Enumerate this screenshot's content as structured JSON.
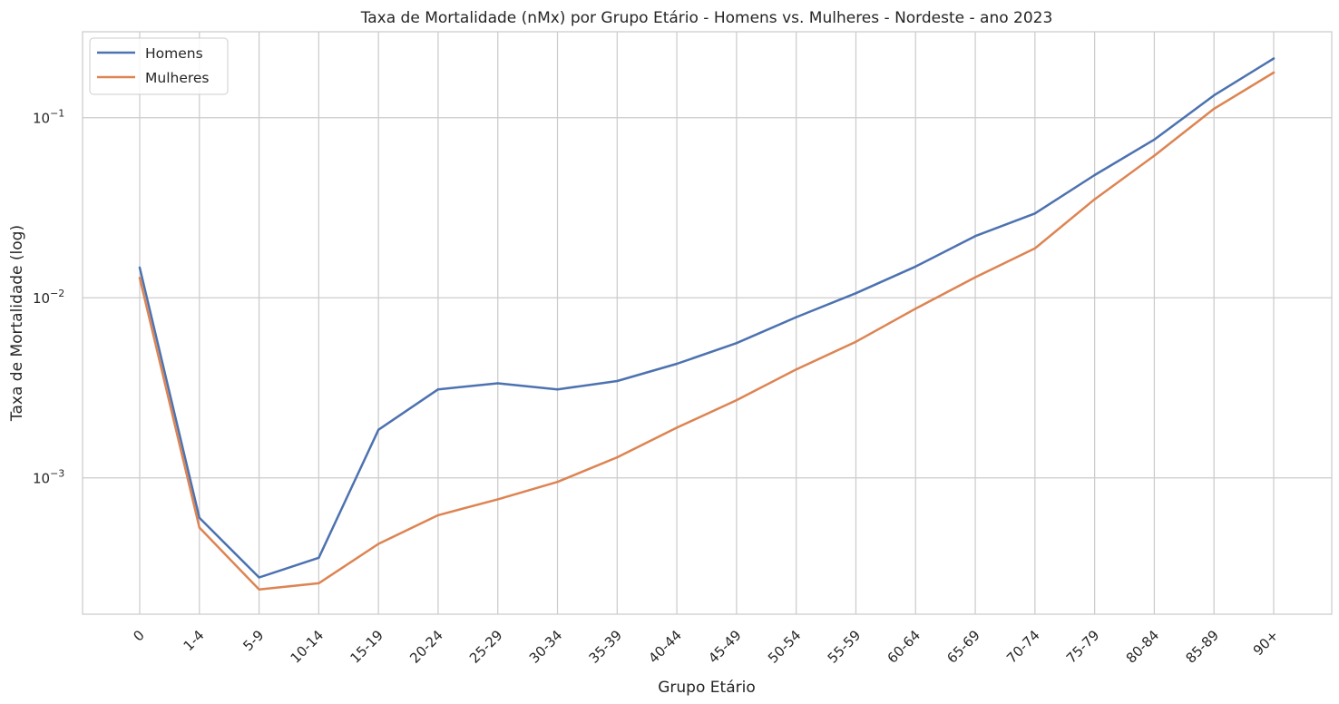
{
  "chart_data": {
    "type": "line",
    "title": "Taxa de Mortalidade (nMx) por Grupo Etário - Homens vs. Mulheres - Nordeste - ano 2023",
    "xlabel": "Grupo Etário",
    "ylabel": "Taxa de Mortalidade (log)",
    "yscale": "log",
    "ylim": [
      0.000175,
      0.3
    ],
    "y_ticks": [
      {
        "value": 0.001,
        "base": "10",
        "exp": "−3"
      },
      {
        "value": 0.01,
        "base": "10",
        "exp": "−2"
      },
      {
        "value": 0.1,
        "base": "10",
        "exp": "−1"
      }
    ],
    "grid": true,
    "legend_position": "top-left",
    "categories": [
      "0",
      "1-4",
      "5-9",
      "10-14",
      "15-19",
      "20-24",
      "25-29",
      "30-34",
      "35-39",
      "40-44",
      "45-49",
      "50-54",
      "55-59",
      "60-64",
      "65-69",
      "70-74",
      "75-79",
      "80-84",
      "85-89",
      "90+"
    ],
    "series": [
      {
        "name": "Homens",
        "color": "#4c72b0",
        "values": [
          0.0147,
          0.0006,
          0.00028,
          0.00036,
          0.00185,
          0.0031,
          0.00335,
          0.0031,
          0.00345,
          0.0043,
          0.0056,
          0.0078,
          0.0106,
          0.0149,
          0.022,
          0.0294,
          0.048,
          0.0755,
          0.133,
          0.213
        ]
      },
      {
        "name": "Mulheres",
        "color": "#dd8452",
        "values": [
          0.0129,
          0.00053,
          0.00024,
          0.00026,
          0.00043,
          0.00062,
          0.00076,
          0.00095,
          0.0013,
          0.0019,
          0.0027,
          0.004,
          0.0057,
          0.0087,
          0.013,
          0.0188,
          0.0352,
          0.0615,
          0.112,
          0.178
        ]
      }
    ]
  }
}
